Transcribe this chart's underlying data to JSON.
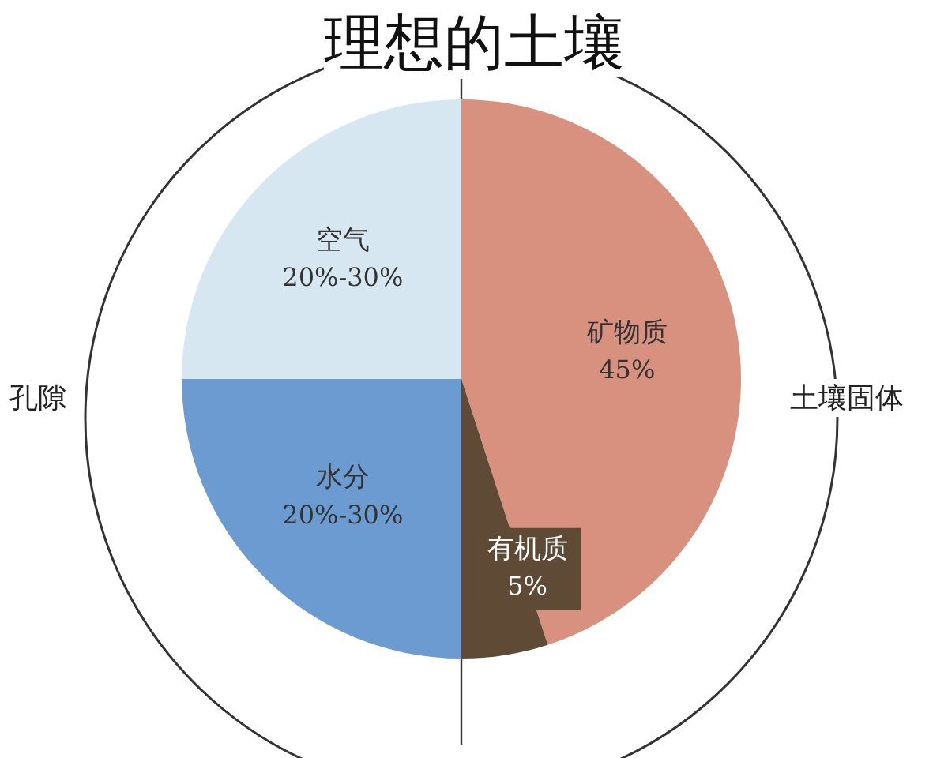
{
  "chart_data": {
    "type": "pie",
    "title": "理想的土壤",
    "categories": [
      "矿物质",
      "有机质",
      "水分",
      "空气"
    ],
    "values": [
      45,
      5,
      25,
      25
    ],
    "value_labels": [
      "45%",
      "5%",
      null,
      null
    ],
    "colors": [
      "#d8907f",
      "#5f4a35",
      "#6b9bd1",
      "#d7e7f1"
    ],
    "legend": false,
    "annotations": [
      "孔隙",
      "土壤固体",
      {
        "text": "20%-30%",
        "x": "水分"
      },
      {
        "text": "20%-30%",
        "x": "空气"
      }
    ]
  }
}
